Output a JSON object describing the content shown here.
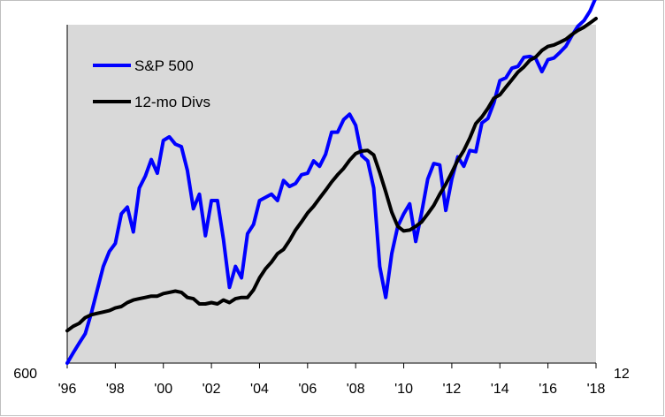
{
  "chart_data": {
    "type": "line",
    "title": "",
    "xlabel": "",
    "ylabel": "",
    "x_ticks": [
      "'96",
      "'98",
      "'00",
      "'02",
      "'04",
      "'06",
      "'08",
      "'10",
      "'12",
      "'14",
      "'16",
      "'18"
    ],
    "xlim": [
      1996,
      2018
    ],
    "left_axis_label_min": "600",
    "right_axis_label_min": "12",
    "log_scale": true,
    "left_ylim": [
      600,
      3000
    ],
    "right_ylim": [
      12,
      60
    ],
    "grid": false,
    "plot_background": "#d9d9d9",
    "legend_position": "top-left",
    "series": [
      {
        "name": "S&P 500",
        "axis": "left",
        "color": "#0000ff",
        "x": [
          1996.0,
          1996.25,
          1996.5,
          1996.75,
          1997.0,
          1997.25,
          1997.5,
          1997.75,
          1998.0,
          1998.25,
          1998.5,
          1998.75,
          1999.0,
          1999.25,
          1999.5,
          1999.75,
          2000.0,
          2000.25,
          2000.5,
          2000.75,
          2001.0,
          2001.25,
          2001.5,
          2001.75,
          2002.0,
          2002.25,
          2002.5,
          2002.75,
          2003.0,
          2003.25,
          2003.5,
          2003.75,
          2004.0,
          2004.25,
          2004.5,
          2004.75,
          2005.0,
          2005.25,
          2005.5,
          2005.75,
          2006.0,
          2006.25,
          2006.5,
          2006.75,
          2007.0,
          2007.25,
          2007.5,
          2007.75,
          2008.0,
          2008.25,
          2008.5,
          2008.75,
          2009.0,
          2009.25,
          2009.5,
          2009.75,
          2010.0,
          2010.25,
          2010.5,
          2010.75,
          2011.0,
          2011.25,
          2011.5,
          2011.75,
          2012.0,
          2012.25,
          2012.5,
          2012.75,
          2013.0,
          2013.25,
          2013.5,
          2013.75,
          2014.0,
          2014.25,
          2014.5,
          2014.75,
          2015.0,
          2015.25,
          2015.5,
          2015.75,
          2016.0,
          2016.25,
          2016.5,
          2016.75,
          2017.0,
          2017.25,
          2017.5,
          2017.75,
          2018.0
        ],
        "values": [
          600,
          630,
          660,
          690,
          760,
          850,
          950,
          1020,
          1060,
          1220,
          1260,
          1120,
          1380,
          1460,
          1580,
          1480,
          1730,
          1760,
          1700,
          1680,
          1500,
          1250,
          1340,
          1100,
          1300,
          1300,
          1080,
          860,
          950,
          900,
          1110,
          1160,
          1300,
          1320,
          1340,
          1300,
          1430,
          1390,
          1410,
          1470,
          1480,
          1570,
          1530,
          1620,
          1800,
          1800,
          1910,
          1960,
          1860,
          1610,
          1570,
          1380,
          950,
          820,
          1010,
          1150,
          1220,
          1280,
          1070,
          1230,
          1440,
          1550,
          1540,
          1240,
          1440,
          1600,
          1530,
          1650,
          1640,
          1880,
          1920,
          2070,
          2300,
          2330,
          2440,
          2460,
          2570,
          2580,
          2550,
          2400,
          2540,
          2560,
          2630,
          2710,
          2850,
          2980,
          3060,
          3200,
          3420
        ]
      },
      {
        "name": "12-mo Divs",
        "axis": "right",
        "color": "#000000",
        "x": [
          1996.0,
          1996.25,
          1996.5,
          1996.75,
          1997.0,
          1997.25,
          1997.5,
          1997.75,
          1998.0,
          1998.25,
          1998.5,
          1998.75,
          1999.0,
          1999.25,
          1999.5,
          1999.75,
          2000.0,
          2000.25,
          2000.5,
          2000.75,
          2001.0,
          2001.25,
          2001.5,
          2001.75,
          2002.0,
          2002.25,
          2002.5,
          2002.75,
          2003.0,
          2003.25,
          2003.5,
          2003.75,
          2004.0,
          2004.25,
          2004.5,
          2004.75,
          2005.0,
          2005.25,
          2005.5,
          2005.75,
          2006.0,
          2006.25,
          2006.5,
          2006.75,
          2007.0,
          2007.25,
          2007.5,
          2007.75,
          2008.0,
          2008.25,
          2008.5,
          2008.75,
          2009.0,
          2009.25,
          2009.5,
          2009.75,
          2010.0,
          2010.25,
          2010.5,
          2010.75,
          2011.0,
          2011.25,
          2011.5,
          2011.75,
          2012.0,
          2012.25,
          2012.5,
          2012.75,
          2013.0,
          2013.25,
          2013.5,
          2013.75,
          2014.0,
          2014.25,
          2014.5,
          2014.75,
          2015.0,
          2015.25,
          2015.5,
          2015.75,
          2016.0,
          2016.25,
          2016.5,
          2016.75,
          2017.0,
          2017.25,
          2017.5,
          2017.75,
          2018.0
        ],
        "values": [
          14.0,
          14.3,
          14.5,
          14.9,
          15.1,
          15.2,
          15.3,
          15.4,
          15.6,
          15.7,
          16.0,
          16.2,
          16.3,
          16.4,
          16.5,
          16.5,
          16.7,
          16.8,
          16.9,
          16.8,
          16.4,
          16.3,
          15.9,
          15.9,
          16.0,
          15.9,
          16.2,
          16.0,
          16.3,
          16.4,
          16.4,
          17.0,
          18.0,
          18.8,
          19.4,
          20.2,
          20.6,
          21.5,
          22.6,
          23.5,
          24.5,
          25.3,
          26.3,
          27.3,
          28.4,
          29.4,
          30.3,
          31.5,
          32.5,
          32.9,
          33.0,
          32.3,
          29.7,
          27.1,
          24.6,
          23.0,
          22.5,
          22.6,
          23.0,
          23.5,
          24.4,
          25.4,
          26.8,
          28.1,
          29.7,
          31.5,
          33.0,
          35.0,
          37.5,
          38.7,
          40.3,
          42.3,
          43.0,
          44.6,
          46.2,
          47.9,
          49.1,
          50.7,
          51.5,
          53.1,
          54.1,
          54.5,
          55.2,
          56.0,
          57.3,
          58.4,
          59.3,
          60.5,
          61.8
        ]
      }
    ]
  }
}
